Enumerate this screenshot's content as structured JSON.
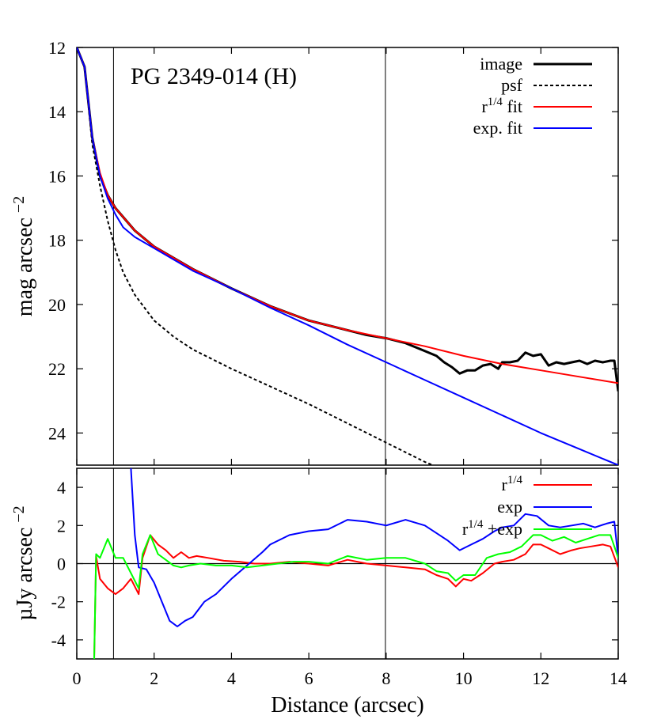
{
  "chart_data": [
    {
      "type": "line",
      "title": "PG 2349-014 (H)",
      "xlabel": "",
      "ylabel": "mag arcsec",
      "ylabel_exponent": "−2",
      "xlim": [
        0,
        14
      ],
      "ylim": [
        25,
        12
      ],
      "y_inverted": true,
      "x_ticks": [],
      "y_ticks": [
        "12",
        "14",
        "16",
        "18",
        "20",
        "22",
        "24"
      ],
      "y_tick_values": [
        12,
        14,
        16,
        18,
        20,
        22,
        24
      ],
      "vertical_lines": [
        0.95,
        7.98
      ],
      "legend_position": "top-right",
      "series": [
        {
          "name": "image",
          "legend": "image",
          "color": "#000000",
          "style": "solid",
          "width": 3,
          "x": [
            0,
            0.2,
            0.4,
            0.6,
            0.8,
            1.0,
            1.5,
            2.0,
            3.0,
            4.0,
            5.0,
            6.0,
            6.5,
            7.0,
            7.5,
            8.0,
            8.5,
            9.0,
            9.3,
            9.5,
            9.7,
            9.9,
            10.1,
            10.3,
            10.5,
            10.7,
            10.9,
            11.0,
            11.2,
            11.4,
            11.6,
            11.8,
            12.0,
            12.2,
            12.4,
            12.6,
            12.8,
            13.0,
            13.2,
            13.4,
            13.6,
            13.8,
            13.9,
            14.0
          ],
          "y": [
            12.0,
            12.6,
            14.8,
            16.0,
            16.6,
            17.0,
            17.7,
            18.2,
            18.9,
            19.5,
            20.05,
            20.5,
            20.65,
            20.8,
            20.95,
            21.05,
            21.2,
            21.45,
            21.6,
            21.8,
            21.95,
            22.15,
            22.05,
            22.05,
            21.9,
            21.85,
            22.0,
            21.8,
            21.8,
            21.75,
            21.5,
            21.6,
            21.55,
            21.9,
            21.8,
            21.85,
            21.8,
            21.75,
            21.85,
            21.75,
            21.8,
            21.75,
            21.75,
            22.7
          ]
        },
        {
          "name": "psf",
          "legend": "psf",
          "color": "#000000",
          "style": "dashed",
          "width": 2,
          "x": [
            0,
            0.2,
            0.4,
            0.6,
            0.8,
            1.0,
            1.2,
            1.5,
            2.0,
            2.5,
            3.0,
            4.0,
            5.0,
            6.0,
            7.0,
            8.0,
            9.0,
            9.2
          ],
          "y": [
            12.0,
            12.6,
            15.0,
            16.3,
            17.4,
            18.3,
            19.0,
            19.7,
            20.5,
            21.0,
            21.4,
            22.0,
            22.55,
            23.1,
            23.7,
            24.3,
            24.9,
            25.0
          ]
        },
        {
          "name": "r1/4 fit",
          "legend": "r1/4 fit",
          "color": "#ff0000",
          "style": "solid",
          "width": 2,
          "x": [
            0,
            0.2,
            0.4,
            0.6,
            0.8,
            1.0,
            1.5,
            2.0,
            3.0,
            4.0,
            5.0,
            6.0,
            7.0,
            8.0,
            9.0,
            10.0,
            11.0,
            12.0,
            13.0,
            14.0
          ],
          "y": [
            12.0,
            12.6,
            14.8,
            15.9,
            16.6,
            17.0,
            17.7,
            18.2,
            18.9,
            19.5,
            20.05,
            20.5,
            20.8,
            21.05,
            21.3,
            21.6,
            21.85,
            22.05,
            22.25,
            22.45
          ]
        },
        {
          "name": "exp. fit",
          "legend": "exp. fit",
          "color": "#0000ff",
          "style": "solid",
          "width": 2,
          "x": [
            0,
            0.2,
            0.4,
            0.6,
            0.8,
            1.0,
            1.2,
            1.5,
            2.0,
            3.0,
            4.0,
            5.0,
            6.0,
            7.0,
            8.0,
            9.0,
            10.0,
            11.0,
            12.0,
            13.0,
            14.0
          ],
          "y": [
            12.0,
            12.6,
            14.8,
            16.0,
            16.7,
            17.2,
            17.6,
            17.9,
            18.25,
            18.95,
            19.5,
            20.1,
            20.65,
            21.25,
            21.8,
            22.35,
            22.9,
            23.45,
            24.0,
            24.5,
            25.0
          ]
        }
      ]
    },
    {
      "type": "line",
      "title": "",
      "xlabel": "Distance (arcsec)",
      "ylabel": "µJy arcsec",
      "ylabel_exponent": "−2",
      "xlim": [
        0,
        14
      ],
      "ylim": [
        -5,
        5
      ],
      "x_ticks": [
        "0",
        "2",
        "4",
        "6",
        "8",
        "10",
        "12",
        "14"
      ],
      "x_tick_values": [
        0,
        2,
        4,
        6,
        8,
        10,
        12,
        14
      ],
      "y_ticks": [
        "-4",
        "-2",
        "0",
        "2",
        "4"
      ],
      "y_tick_values": [
        -4,
        -2,
        0,
        2,
        4
      ],
      "horizontal_line": 0,
      "vertical_lines": [
        0.95,
        7.98
      ],
      "legend_position": "top-right",
      "series": [
        {
          "name": "r1/4",
          "legend": "r 1/4",
          "color": "#ff0000",
          "x": [
            0.45,
            0.5,
            0.6,
            0.8,
            1.0,
            1.2,
            1.4,
            1.6,
            1.7,
            1.9,
            2.1,
            2.3,
            2.5,
            2.7,
            2.9,
            3.1,
            3.4,
            3.8,
            4.2,
            4.6,
            5.0,
            5.5,
            6.0,
            6.5,
            7.0,
            7.5,
            8.0,
            8.5,
            9.0,
            9.3,
            9.6,
            9.8,
            10.0,
            10.2,
            10.5,
            10.8,
            11.0,
            11.3,
            11.6,
            11.8,
            12.0,
            12.2,
            12.5,
            12.8,
            13.0,
            13.3,
            13.6,
            13.8,
            14.0
          ],
          "y": [
            -5.0,
            0.4,
            -0.8,
            -1.3,
            -1.6,
            -1.3,
            -0.8,
            -1.6,
            0.3,
            1.5,
            1.0,
            0.7,
            0.3,
            0.6,
            0.3,
            0.4,
            0.3,
            0.15,
            0.1,
            0.0,
            0.0,
            0.1,
            0.0,
            -0.1,
            0.2,
            0.0,
            -0.1,
            -0.2,
            -0.3,
            -0.6,
            -0.8,
            -1.2,
            -0.8,
            -0.9,
            -0.5,
            0.0,
            0.1,
            0.2,
            0.5,
            1.0,
            1.0,
            0.8,
            0.5,
            0.7,
            0.8,
            0.9,
            1.0,
            0.9,
            -0.2
          ]
        },
        {
          "name": "exp",
          "legend": "exp",
          "color": "#0000ff",
          "x": [
            1.4,
            1.5,
            1.6,
            1.8,
            2.0,
            2.2,
            2.4,
            2.6,
            2.8,
            3.0,
            3.3,
            3.6,
            4.0,
            4.4,
            4.8,
            5.0,
            5.5,
            6.0,
            6.5,
            7.0,
            7.5,
            8.0,
            8.5,
            9.0,
            9.3,
            9.6,
            9.9,
            10.2,
            10.5,
            10.8,
            11.0,
            11.3,
            11.6,
            11.9,
            12.2,
            12.5,
            12.8,
            13.1,
            13.4,
            13.7,
            13.9,
            14.0
          ],
          "y": [
            5.0,
            1.5,
            -0.2,
            -0.3,
            -1.0,
            -2.0,
            -3.0,
            -3.3,
            -3.0,
            -2.8,
            -2.0,
            -1.6,
            -0.8,
            -0.1,
            0.6,
            1.0,
            1.5,
            1.7,
            1.8,
            2.3,
            2.2,
            2.0,
            2.3,
            2.0,
            1.6,
            1.2,
            0.7,
            1.0,
            1.3,
            1.7,
            1.9,
            2.0,
            2.6,
            2.5,
            2.0,
            1.9,
            2.0,
            2.1,
            1.9,
            2.1,
            2.2,
            0.3
          ]
        },
        {
          "name": "r1/4 +exp",
          "legend": "r 1/4 +exp",
          "color": "#00ff00",
          "x": [
            0.45,
            0.5,
            0.6,
            0.7,
            0.8,
            1.0,
            1.2,
            1.4,
            1.6,
            1.7,
            1.9,
            2.1,
            2.3,
            2.5,
            2.7,
            2.9,
            3.2,
            3.6,
            4.0,
            4.4,
            4.8,
            5.2,
            5.6,
            6.0,
            6.5,
            7.0,
            7.5,
            8.0,
            8.5,
            9.0,
            9.3,
            9.6,
            9.8,
            10.0,
            10.3,
            10.6,
            10.9,
            11.2,
            11.5,
            11.8,
            12.0,
            12.3,
            12.6,
            12.9,
            13.2,
            13.5,
            13.8,
            14.0
          ],
          "y": [
            -5.0,
            0.5,
            0.3,
            0.8,
            1.3,
            0.3,
            0.3,
            -0.5,
            -1.3,
            0.5,
            1.5,
            0.5,
            0.2,
            -0.1,
            -0.2,
            -0.1,
            0.0,
            -0.1,
            -0.1,
            -0.2,
            -0.1,
            0.0,
            0.1,
            0.1,
            0.0,
            0.4,
            0.2,
            0.3,
            0.3,
            0.0,
            -0.4,
            -0.5,
            -0.9,
            -0.6,
            -0.6,
            0.3,
            0.5,
            0.6,
            0.9,
            1.5,
            1.5,
            1.2,
            1.4,
            1.1,
            1.3,
            1.5,
            1.5,
            0.3
          ]
        }
      ]
    }
  ]
}
